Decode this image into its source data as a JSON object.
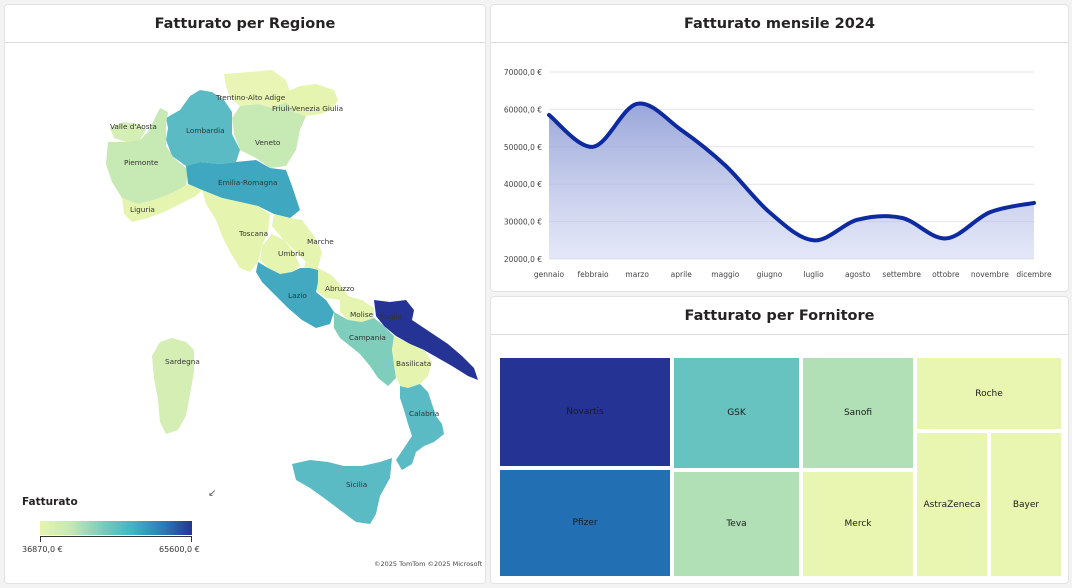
{
  "map": {
    "title": "Fatturato per Regione",
    "legend_title": "Fatturato",
    "legend_min": "36870,0 €",
    "legend_max": "65600,0 €",
    "copyright": "©2025 TomTom  ©2025 Microsoft",
    "colors": {
      "low": "#e5f5b0",
      "high": "#253494"
    },
    "regions": [
      "Trentino-Alto Adige",
      "Friuli-Venezia Giulia",
      "Valle d'Aosta",
      "Lombardia",
      "Veneto",
      "Piemonte",
      "Emilia-Romagna",
      "Liguria",
      "Toscana",
      "Marche",
      "Umbria",
      "Abruzzo",
      "Lazio",
      "Molise",
      "Puglia",
      "Campania",
      "Basilicata",
      "Sardegna",
      "Calabria",
      "Sicilia"
    ]
  },
  "line": {
    "title": "Fatturato mensile 2024",
    "color": "#0d2aa0"
  },
  "tree": {
    "title": "Fatturato per Fornitore",
    "tiles": [
      "Novartis",
      "GSK",
      "Sanofi",
      "Roche",
      "Pfizer",
      "Teva",
      "Merck",
      "AstraZeneca",
      "Bayer"
    ]
  },
  "chart_data": {
    "type": "line",
    "title": "Fatturato mensile 2024",
    "categories": [
      "gennaio",
      "febbraio",
      "marzo",
      "aprile",
      "maggio",
      "giugno",
      "luglio",
      "agosto",
      "settembre",
      "ottobre",
      "novembre",
      "dicembre"
    ],
    "values": [
      58500,
      50000,
      61500,
      54500,
      45000,
      32500,
      25000,
      30500,
      31000,
      25500,
      32500,
      35000
    ],
    "yticks": [
      "20000,0 €",
      "30000,0 €",
      "40000,0 €",
      "50000,0 €",
      "60000,0 €",
      "70000,0 €"
    ],
    "ylim": [
      20000,
      70000
    ],
    "grid": true
  }
}
